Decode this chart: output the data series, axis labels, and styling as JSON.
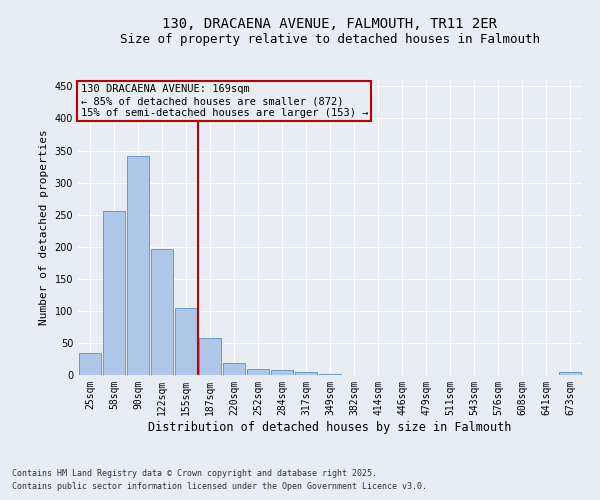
{
  "title": "130, DRACAENA AVENUE, FALMOUTH, TR11 2ER",
  "subtitle": "Size of property relative to detached houses in Falmouth",
  "xlabel": "Distribution of detached houses by size in Falmouth",
  "ylabel": "Number of detached properties",
  "footnote1": "Contains HM Land Registry data © Crown copyright and database right 2025.",
  "footnote2": "Contains public sector information licensed under the Open Government Licence v3.0.",
  "annotation_title": "130 DRACAENA AVENUE: 169sqm",
  "annotation_line1": "← 85% of detached houses are smaller (872)",
  "annotation_line2": "15% of semi-detached houses are larger (153) →",
  "categories": [
    "25sqm",
    "58sqm",
    "90sqm",
    "122sqm",
    "155sqm",
    "187sqm",
    "220sqm",
    "252sqm",
    "284sqm",
    "317sqm",
    "349sqm",
    "382sqm",
    "414sqm",
    "446sqm",
    "479sqm",
    "511sqm",
    "543sqm",
    "576sqm",
    "608sqm",
    "641sqm",
    "673sqm"
  ],
  "values": [
    35,
    256,
    341,
    197,
    104,
    57,
    18,
    10,
    8,
    5,
    2,
    0,
    0,
    0,
    0,
    0,
    0,
    0,
    0,
    0,
    4
  ],
  "bar_color": "#aec6e8",
  "bar_edge_color": "#5a8fc0",
  "vline_x_index": 4.5,
  "vline_color": "#c00000",
  "annotation_box_color": "#c00000",
  "bg_color": "#e8edf4",
  "grid_color": "#ffffff",
  "ylim": [
    0,
    460
  ],
  "yticks": [
    0,
    50,
    100,
    150,
    200,
    250,
    300,
    350,
    400,
    450
  ],
  "title_fontsize": 10,
  "subtitle_fontsize": 9,
  "xlabel_fontsize": 8.5,
  "ylabel_fontsize": 8,
  "tick_fontsize": 7,
  "annotation_fontsize": 7.5,
  "footnote_fontsize": 6
}
